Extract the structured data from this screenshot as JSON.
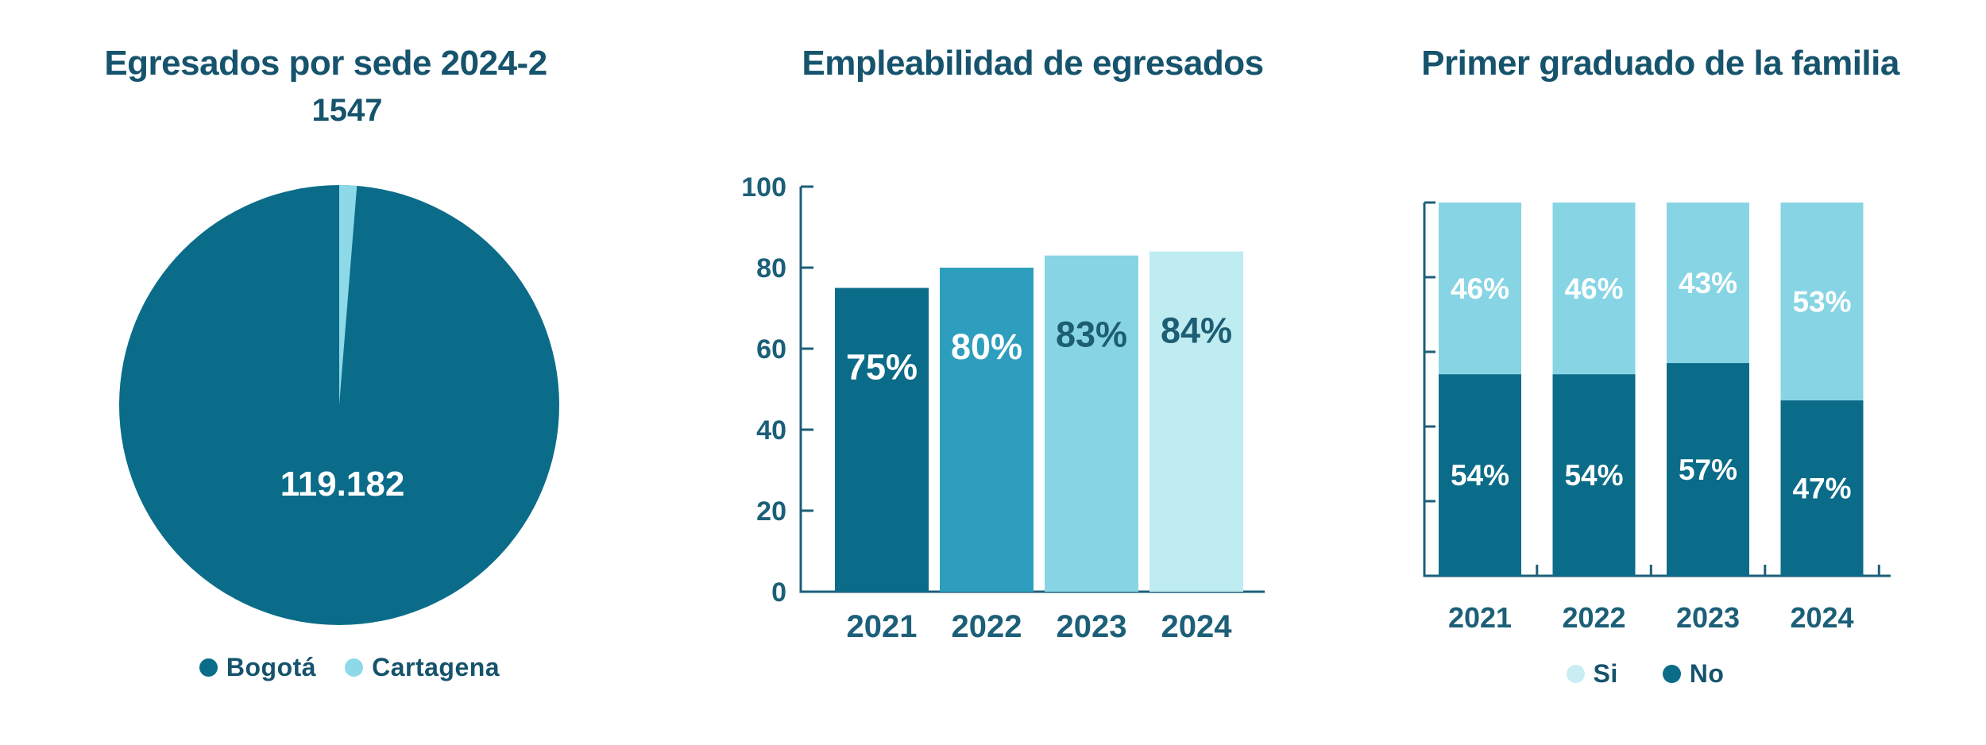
{
  "page": {
    "background": "#FFFFFF"
  },
  "palette": {
    "dark_teal": "#0B6C89",
    "teal_medium": "#2E9EBE",
    "blue_light": "#87D5E4",
    "blue_pale": "#BFECF1",
    "cartagena_blue": "#8DD9E8",
    "legend_si_blue": "#C8EEF3",
    "title_text": "#16536C",
    "axis_text": "#1C5F78",
    "label_on_light": "#1D5E74",
    "label_on_dark": "#FFFFFF"
  },
  "chart_data": [
    {
      "id": "egresados-por-sede",
      "type": "pie",
      "title": "Egresados por sede 2024-2",
      "slices": [
        {
          "label": "Bogotá",
          "value": 119182,
          "display_value": "119.182",
          "color": "#0B6C89",
          "value_label_color": "#FFFFFF",
          "value_label_position": "inside"
        },
        {
          "label": "Cartagena",
          "value": 1547,
          "display_value": "1547",
          "color": "#8DD9E8",
          "value_label_color": "#16536C",
          "value_label_position": "outside-top"
        }
      ],
      "legend_position": "bottom",
      "grid": false
    },
    {
      "id": "empleabilidad-egresados",
      "type": "bar",
      "title": "Empleabilidad de egresados",
      "categories": [
        "2021",
        "2022",
        "2023",
        "2024"
      ],
      "values": [
        75,
        80,
        83,
        84
      ],
      "value_labels": [
        "75%",
        "80%",
        "83%",
        "84%"
      ],
      "bar_colors": [
        "#0B6C89",
        "#2E9EBE",
        "#87D5E4",
        "#BFECF1"
      ],
      "value_label_colors": [
        "#FFFFFF",
        "#FFFFFF",
        "#1D5E74",
        "#1D5E74"
      ],
      "xlabel": "",
      "ylabel": "",
      "ylim": [
        0,
        100
      ],
      "yticks": [
        0,
        20,
        40,
        60,
        80,
        100
      ],
      "grid": false,
      "legend_position": "none"
    },
    {
      "id": "primer-graduado-familia",
      "type": "stacked_bar",
      "title": "Primer graduado de la familia",
      "categories": [
        "2021",
        "2022",
        "2023",
        "2024"
      ],
      "series": [
        {
          "name": "Si",
          "stack_position": "top",
          "values": [
            46,
            46,
            43,
            53
          ],
          "value_labels": [
            "46%",
            "46%",
            "43%",
            "53%"
          ],
          "color": "#87D5E4",
          "legend_color": "#C8EEF3",
          "label_color": "#FFFFFF"
        },
        {
          "name": "No",
          "stack_position": "bottom",
          "values": [
            54,
            54,
            57,
            47
          ],
          "value_labels": [
            "54%",
            "54%",
            "57%",
            "47%"
          ],
          "color": "#0B6C89",
          "legend_color": "#0B6C89",
          "label_color": "#FFFFFF"
        }
      ],
      "xlabel": "",
      "ylabel": "",
      "ylim": [
        0,
        100
      ],
      "yticks_unlabeled": [
        0,
        20,
        40,
        60,
        80,
        100
      ],
      "grid": false,
      "legend_position": "bottom"
    }
  ]
}
